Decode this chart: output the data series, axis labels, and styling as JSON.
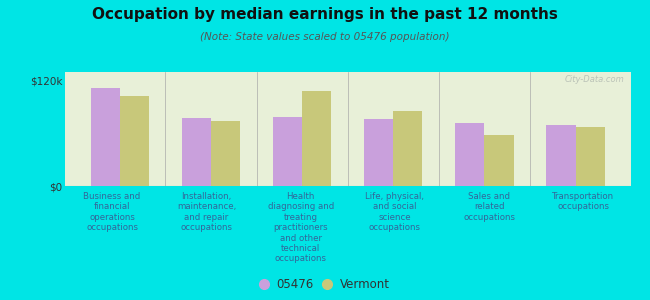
{
  "title": "Occupation by median earnings in the past 12 months",
  "subtitle": "(Note: State values scaled to 05476 population)",
  "categories": [
    "Business and\nfinancial\noperations\noccupations",
    "Installation,\nmaintenance,\nand repair\noccupations",
    "Health\ndiagnosing and\ntreating\npractitioners\nand other\ntechnical\noccupations",
    "Life, physical,\nand social\nscience\noccupations",
    "Sales and\nrelated\noccupations",
    "Transportation\noccupations"
  ],
  "values_05476": [
    112000,
    78000,
    79000,
    76000,
    72000,
    70000
  ],
  "values_vermont": [
    103000,
    74000,
    108000,
    86000,
    58000,
    67000
  ],
  "color_05476": "#c9a0dc",
  "color_vermont": "#c8c87a",
  "background_color": "#00e5e5",
  "plot_bg_color": "#e8f0d8",
  "ylim": [
    0,
    130000
  ],
  "yticks": [
    0,
    120000
  ],
  "ytick_labels": [
    "$0",
    "$120k"
  ],
  "legend_05476": "05476",
  "legend_vermont": "Vermont",
  "watermark": "City-Data.com",
  "label_color": "#336699",
  "title_color": "#111111",
  "subtitle_color": "#555555"
}
